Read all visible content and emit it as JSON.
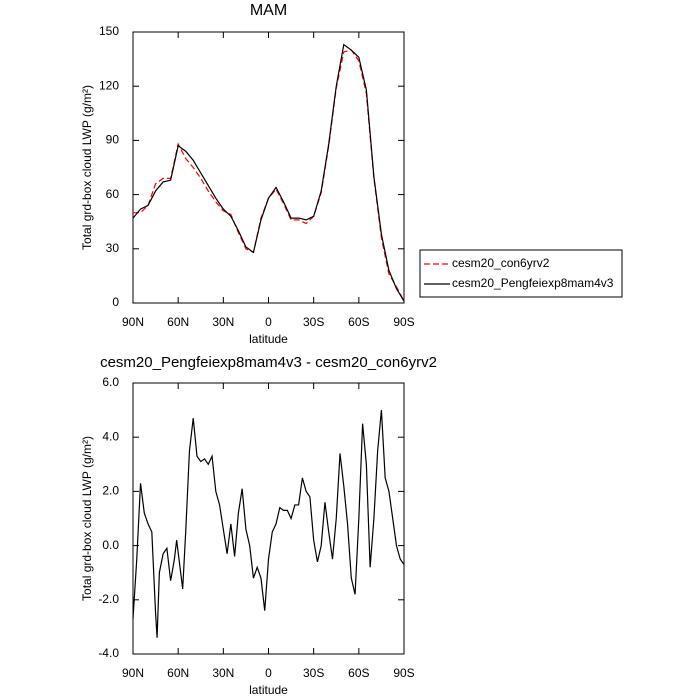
{
  "chart_data": [
    {
      "type": "line",
      "title": "MAM",
      "x_label": "latitude",
      "y_label": "Total grd-box cloud LWP (g/m²)",
      "x": [
        90,
        85,
        80,
        75,
        70,
        65,
        60,
        55,
        50,
        45,
        40,
        35,
        30,
        25,
        20,
        15,
        10,
        5,
        0,
        -5,
        -10,
        -15,
        -20,
        -25,
        -30,
        -35,
        -40,
        -45,
        -50,
        -55,
        -60,
        -65,
        -70,
        -75,
        -80,
        -85,
        -90
      ],
      "series": [
        {
          "name": "cesm20_con6yrv2",
          "color": "#ff0000",
          "style": "dashed",
          "values": [
            50,
            50,
            54,
            66,
            69,
            69,
            88,
            80,
            75,
            69,
            62,
            56,
            51,
            49,
            39,
            30,
            28,
            47,
            58,
            63,
            55,
            46,
            46,
            44,
            48,
            61,
            87,
            119,
            139,
            140,
            134,
            116,
            69,
            36,
            16,
            9,
            1
          ]
        },
        {
          "name": "cesm20_Pengfeiexp8mam4v3",
          "color": "#000000",
          "style": "solid",
          "values": [
            47,
            52,
            54,
            62,
            67,
            68,
            87,
            84,
            79,
            72,
            65,
            58,
            52,
            48,
            40,
            31,
            28,
            46,
            58,
            64,
            56,
            47,
            47,
            46,
            48,
            62,
            88,
            120,
            143,
            140,
            136,
            118,
            70,
            38,
            18,
            8,
            1
          ]
        }
      ],
      "xlim": [
        90,
        -90
      ],
      "xticks": [
        {
          "value": 90,
          "label": "90N"
        },
        {
          "value": 60,
          "label": "60N"
        },
        {
          "value": 30,
          "label": "30N"
        },
        0,
        {
          "value": -30,
          "label": "30S"
        },
        {
          "value": -60,
          "label": "60S"
        },
        {
          "value": -90,
          "label": "90S"
        }
      ],
      "ylim": [
        0,
        150
      ],
      "yticks": [
        0,
        30,
        60,
        90,
        120,
        150
      ],
      "legend": "right"
    },
    {
      "type": "line",
      "title": "cesm20_Pengfeiexp8mam4v3 - cesm20_con6yrv2",
      "x_label": "latitude",
      "y_label": "Total grd-box cloud LWP (g/m²)",
      "x": [
        90,
        87.5,
        85,
        82.5,
        80,
        77.5,
        75,
        74,
        72.5,
        70,
        67.5,
        65,
        62.5,
        61,
        57,
        55,
        52.5,
        50,
        47.5,
        45,
        42.5,
        40,
        37.5,
        35,
        32.5,
        30,
        27.5,
        25,
        22.5,
        20,
        17.5,
        15,
        12.5,
        10,
        7.5,
        5,
        2.5,
        0,
        -2.5,
        -5,
        -7.5,
        -10,
        -12.5,
        -15,
        -17.5,
        -20,
        -22.5,
        -25,
        -27.5,
        -30,
        -32.5,
        -35,
        -37.5,
        -40,
        -42.5,
        -45,
        -47.5,
        -50,
        -52.5,
        -55,
        -57.5,
        -60,
        -62.5,
        -65,
        -67.5,
        -70,
        -72.5,
        -75,
        -77.5,
        -80,
        -82.5,
        -85,
        -87.5,
        -90
      ],
      "series": [
        {
          "name": null,
          "color": "#000000",
          "style": "solid",
          "values": [
            -2.7,
            -0.5,
            2.3,
            1.2,
            0.8,
            0.5,
            -2.5,
            -3.4,
            -1.0,
            -0.3,
            -0.1,
            -1.3,
            -0.5,
            0.2,
            -1.6,
            0.5,
            3.5,
            4.7,
            3.3,
            3.1,
            3.2,
            3.0,
            3.3,
            2.0,
            1.5,
            0.6,
            -0.3,
            0.8,
            -0.4,
            1.2,
            2.1,
            0.6,
            0.0,
            -1.2,
            -0.8,
            -1.2,
            -2.4,
            -0.5,
            0.5,
            0.8,
            1.4,
            1.3,
            1.3,
            1.0,
            1.5,
            1.5,
            2.5,
            2.0,
            1.8,
            0.2,
            -0.6,
            0.0,
            1.6,
            0.5,
            -0.5,
            1.0,
            3.4,
            2.2,
            0.8,
            -1.2,
            -1.8,
            1.0,
            4.5,
            3.0,
            -0.8,
            1.0,
            3.5,
            5.0,
            2.5,
            2.0,
            1.0,
            0.0,
            -0.5,
            -0.7
          ]
        }
      ],
      "xlim": [
        90,
        -90
      ],
      "xticks": [
        {
          "value": 90,
          "label": "90N"
        },
        {
          "value": 60,
          "label": "60N"
        },
        {
          "value": 30,
          "label": "30N"
        },
        0,
        {
          "value": -30,
          "label": "30S"
        },
        {
          "value": -60,
          "label": "60S"
        },
        {
          "value": -90,
          "label": "90S"
        }
      ],
      "ylim": [
        -4,
        6
      ],
      "yticks": [
        {
          "value": -4,
          "label": "-4.0"
        },
        {
          "value": -2,
          "label": "-2.0"
        },
        {
          "value": 0,
          "label": "0.0"
        },
        {
          "value": 2,
          "label": "2.0"
        },
        {
          "value": 4,
          "label": "4.0"
        },
        {
          "value": 6,
          "label": "6.0"
        }
      ]
    }
  ]
}
